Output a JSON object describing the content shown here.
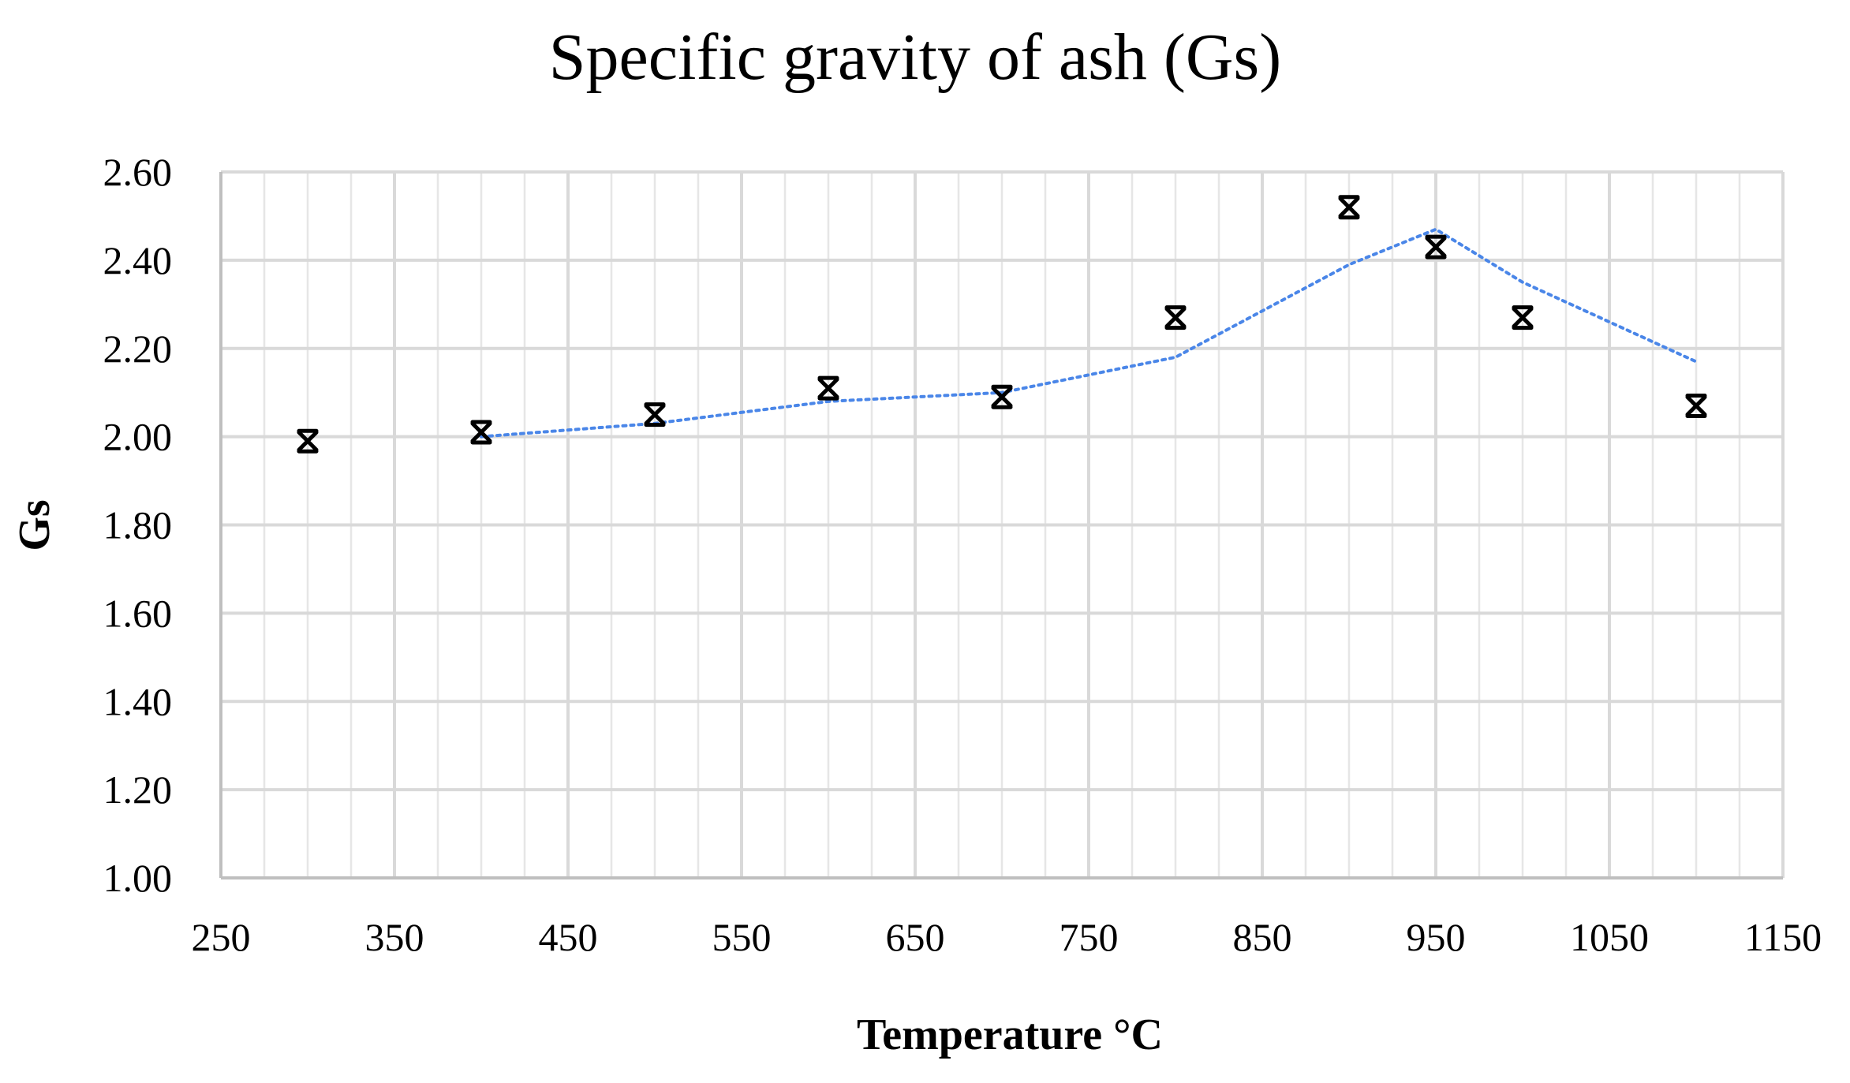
{
  "chart_data": {
    "type": "scatter",
    "title": "Specific gravity of ash (Gs)",
    "xlabel": "Temperature °C",
    "ylabel": "Gs",
    "xlim": [
      250,
      1150
    ],
    "ylim": [
      1.0,
      2.6
    ],
    "x_ticks": [
      "250",
      "350",
      "450",
      "550",
      "650",
      "750",
      "850",
      "950",
      "1050",
      "1150"
    ],
    "y_ticks": [
      "1.00",
      "1.20",
      "1.40",
      "1.60",
      "1.80",
      "2.00",
      "2.20",
      "2.40",
      "2.60"
    ],
    "grid": true,
    "marker_color": "#000000",
    "trendline_color": "#4a86e8",
    "series": [
      {
        "x": [
          300,
          400,
          500,
          600,
          700,
          800,
          900,
          950,
          1000,
          1100
        ],
        "y": [
          1.99,
          2.01,
          2.05,
          2.11,
          2.09,
          2.27,
          2.52,
          2.43,
          2.27,
          2.07
        ]
      }
    ],
    "trendline": {
      "x": [
        400,
        500,
        600,
        700,
        800,
        900,
        950,
        1000,
        1100
      ],
      "y": [
        2.0,
        2.03,
        2.08,
        2.1,
        2.18,
        2.39,
        2.47,
        2.35,
        2.17
      ]
    }
  }
}
